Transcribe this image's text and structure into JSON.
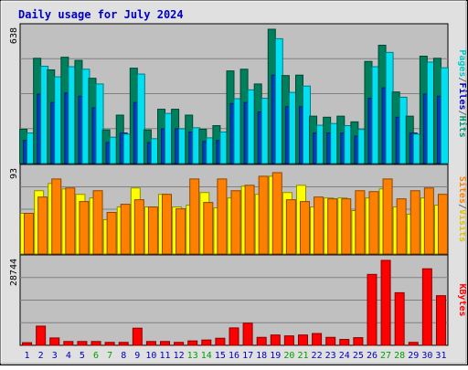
{
  "chart_data": {
    "type": "bar",
    "title": "Daily usage for July 2024",
    "categories": [
      "1",
      "2",
      "3",
      "4",
      "5",
      "6",
      "7",
      "8",
      "9",
      "10",
      "11",
      "12",
      "13",
      "14",
      "15",
      "16",
      "17",
      "18",
      "19",
      "20",
      "21",
      "22",
      "23",
      "24",
      "25",
      "26",
      "27",
      "28",
      "29",
      "30",
      "31"
    ],
    "weekend_days": [
      "6",
      "7",
      "13",
      "14",
      "20",
      "21",
      "27",
      "28"
    ],
    "panels": [
      {
        "name": "hits-files-pages",
        "ymax": 638,
        "ymax_label": "638",
        "ylabel": [
          {
            "text": "Pages",
            "color": "#00c8c8"
          },
          {
            "text": "/",
            "color": "#666666"
          },
          {
            "text": "Files",
            "color": "#0000c0"
          },
          {
            "text": "/",
            "color": "#666666"
          },
          {
            "text": "Hits",
            "color": "#009878"
          }
        ],
        "series": [
          {
            "name": "Hits",
            "color": "#007f5c",
            "values": [
              163,
              500,
              445,
              505,
              490,
              405,
              160,
              230,
              453,
              160,
              258,
              258,
              230,
              163,
              180,
              440,
              448,
              378,
              638,
              418,
              420,
              225,
              220,
              225,
              198,
              485,
              562,
              340,
              225,
              510,
              500
            ]
          },
          {
            "name": "Files",
            "color": "#0040c0",
            "values": [
              110,
              330,
              290,
              335,
              320,
              265,
              100,
              145,
              290,
              100,
              165,
              165,
              150,
              105,
              110,
              285,
              290,
              245,
              420,
              270,
              270,
              145,
              145,
              145,
              130,
              310,
              360,
              220,
              145,
              330,
              320
            ]
          },
          {
            "name": "Pages",
            "color": "#00e0f0",
            "values": [
              145,
              462,
              412,
              460,
              448,
              378,
              125,
              140,
              425,
              118,
              238,
              165,
              170,
              122,
              150,
              308,
              350,
              310,
              593,
              338,
              368,
              182,
              190,
              180,
              162,
              460,
              528,
              315,
              140,
              482,
              455
            ]
          }
        ]
      },
      {
        "name": "visits-sites",
        "ymax": 93,
        "ymax_label": "93",
        "ylabel": [
          {
            "text": "Sites",
            "color": "#ff8000"
          },
          {
            "text": "/",
            "color": "#666666"
          },
          {
            "text": "Visits",
            "color": "#e0c000"
          }
        ],
        "series": [
          {
            "name": "Visits",
            "color": "#ffff00",
            "values": [
              45,
              70,
              78,
              72,
              66,
              62,
              38,
              52,
              73,
              52,
              66,
              52,
              54,
              68,
              51,
              62,
              75,
              66,
              86,
              68,
              76,
              52,
              62,
              62,
              48,
              62,
              72,
              52,
              44,
              62,
              54
            ]
          },
          {
            "name": "Sites",
            "color": "#ff8000",
            "values": [
              45,
              63,
              83,
              73,
              58,
              70,
              46,
              55,
              60,
              52,
              66,
              50,
              83,
              57,
              83,
              70,
              76,
              86,
              90,
              60,
              58,
              63,
              61,
              61,
              70,
              69,
              83,
              61,
              70,
              73,
              66
            ]
          }
        ]
      },
      {
        "name": "kbytes",
        "ymax": 28744,
        "ymax_label": "28744",
        "ylabel": [
          {
            "text": "KBytes",
            "color": "#ff0000"
          }
        ],
        "series": [
          {
            "name": "KBytes",
            "color": "#ff0000",
            "values": [
              900,
              6500,
              2500,
              1300,
              1300,
              1300,
              1000,
              1000,
              5800,
              1300,
              1300,
              1000,
              1500,
              1800,
              2400,
              5900,
              7500,
              2700,
              3500,
              3200,
              3500,
              4000,
              2700,
              2000,
              2600,
              24000,
              28744,
              17800,
              1000,
              25900,
              16800
            ]
          }
        ]
      }
    ],
    "colors": {
      "title": "#0000c0",
      "weekday_label": "#0000c0",
      "weekend_label": "#00a000",
      "plot_bg": "#c0c0c0",
      "frame_bg": "#e0e0e0"
    }
  }
}
